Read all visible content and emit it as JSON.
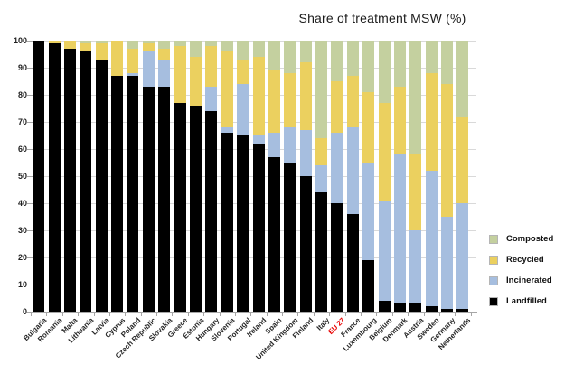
{
  "chart_data": {
    "type": "bar",
    "stacked": true,
    "title": "Share of treatment MSW (%)",
    "ylabel": "",
    "xlabel": "",
    "ylim": [
      0,
      100
    ],
    "ytick_step": 10,
    "grid": true,
    "legend_position": "right",
    "highlight_category": "EU 27",
    "highlight_color": "#e90000",
    "categories": [
      "Bulgaria",
      "Romania",
      "Malta",
      "Lithuania",
      "Latvia",
      "Cyprus",
      "Poland",
      "Czech Republic",
      "Slovakia",
      "Greece",
      "Estonia",
      "Hungary",
      "Slovenia",
      "Portugal",
      "Ireland",
      "Spain",
      "United Kingdom",
      "Finland",
      "Italy",
      "EU 27",
      "France",
      "Luxembourg",
      "Belgium",
      "Denmark",
      "Austria",
      "Sweden",
      "Germany",
      "Netherlands"
    ],
    "series": [
      {
        "name": "Composted",
        "color": "#c4d09f",
        "values": [
          0,
          0,
          0,
          1,
          1,
          0,
          3,
          1,
          3,
          2,
          6,
          2,
          4,
          7,
          6,
          11,
          12,
          8,
          36,
          15,
          13,
          19,
          23,
          17,
          42,
          12,
          16,
          28
        ]
      },
      {
        "name": "Recycled",
        "color": "#ebd05f",
        "values": [
          0,
          1,
          3,
          3,
          6,
          13,
          9,
          3,
          4,
          21,
          18,
          15,
          28,
          9,
          29,
          23,
          20,
          25,
          10,
          19,
          19,
          26,
          36,
          25,
          28,
          36,
          49,
          32
        ]
      },
      {
        "name": "Incinerated",
        "color": "#a6bedf",
        "values": [
          0,
          0,
          0,
          0,
          0,
          0,
          1,
          13,
          10,
          0,
          0,
          9,
          2,
          19,
          3,
          9,
          13,
          17,
          10,
          26,
          32,
          36,
          37,
          55,
          27,
          50,
          34,
          39
        ]
      },
      {
        "name": "Landfilled",
        "color": "#000000",
        "values": [
          100,
          99,
          97,
          96,
          93,
          87,
          87,
          83,
          83,
          77,
          76,
          74,
          66,
          65,
          62,
          57,
          55,
          50,
          44,
          40,
          36,
          19,
          4,
          3,
          3,
          2,
          1,
          1
        ]
      }
    ]
  }
}
